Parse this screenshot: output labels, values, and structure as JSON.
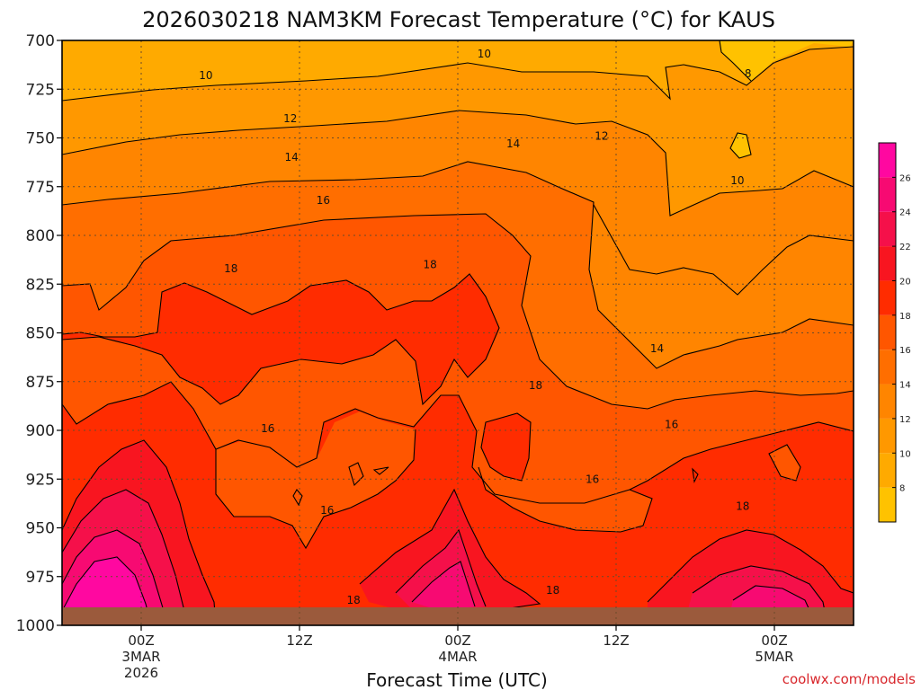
{
  "title": "2026030218 NAM3KM Forecast Temperature (°C) for KAUS",
  "xlabel": "Forecast Time (UTC)",
  "credit": "coolwx.com/models",
  "chart_data": {
    "type": "heatmap",
    "title": "2026030218 NAM3KM Forecast Temperature (°C) for KAUS",
    "xlabel": "Forecast Time (UTC)",
    "ylabel": "",
    "x_ticks": [
      {
        "hour": 6,
        "label": "00Z",
        "sub": [
          "3MAR",
          "2026"
        ]
      },
      {
        "hour": 18,
        "label": "12Z",
        "sub": []
      },
      {
        "hour": 30,
        "label": "00Z",
        "sub": [
          "4MAR"
        ]
      },
      {
        "hour": 42,
        "label": "12Z",
        "sub": []
      },
      {
        "hour": 54,
        "label": "00Z",
        "sub": [
          "5MAR"
        ]
      }
    ],
    "x_range": [
      0,
      60
    ],
    "y_ticks": [
      700,
      725,
      750,
      775,
      800,
      825,
      850,
      875,
      900,
      925,
      950,
      975,
      1000
    ],
    "y_range": [
      700,
      1000
    ],
    "grid": true,
    "surface_pressure_hPa": 992,
    "colorbar": {
      "levels": [
        6,
        8,
        10,
        12,
        14,
        16,
        18,
        20,
        22,
        24,
        26,
        28
      ],
      "labels": [
        8,
        10,
        12,
        14,
        16,
        18,
        20,
        22,
        24,
        26
      ],
      "colors": [
        "#ffc200",
        "#ffaa00",
        "#ff9800",
        "#ff8500",
        "#ff6e00",
        "#ff5600",
        "#ff2c00",
        "#f81520",
        "#f5104a",
        "#f70a72",
        "#ff08a0"
      ]
    },
    "contour_labels": [
      {
        "hour": 10.9,
        "p": 718,
        "text": "10"
      },
      {
        "hour": 32.0,
        "p": 707,
        "text": "10"
      },
      {
        "hour": 52.0,
        "p": 717,
        "text": "8"
      },
      {
        "hour": 17.3,
        "p": 740,
        "text": "12"
      },
      {
        "hour": 40.9,
        "p": 749,
        "text": "12"
      },
      {
        "hour": 17.4,
        "p": 760,
        "text": "14"
      },
      {
        "hour": 34.2,
        "p": 753,
        "text": "14"
      },
      {
        "hour": 51.2,
        "p": 772,
        "text": "10"
      },
      {
        "hour": 19.8,
        "p": 782,
        "text": "16"
      },
      {
        "hour": 12.8,
        "p": 817,
        "text": "18"
      },
      {
        "hour": 27.9,
        "p": 815,
        "text": "18"
      },
      {
        "hour": 45.1,
        "p": 858,
        "text": "14"
      },
      {
        "hour": 35.9,
        "p": 877,
        "text": "18"
      },
      {
        "hour": 15.6,
        "p": 899,
        "text": "16"
      },
      {
        "hour": 46.2,
        "p": 897,
        "text": "16"
      },
      {
        "hour": 40.2,
        "p": 925,
        "text": "16"
      },
      {
        "hour": 20.1,
        "p": 941,
        "text": "16"
      },
      {
        "hour": 51.6,
        "p": 939,
        "text": "18"
      },
      {
        "hour": 22.1,
        "p": 987,
        "text": "18"
      },
      {
        "hour": 37.2,
        "p": 982,
        "text": "18"
      }
    ]
  }
}
